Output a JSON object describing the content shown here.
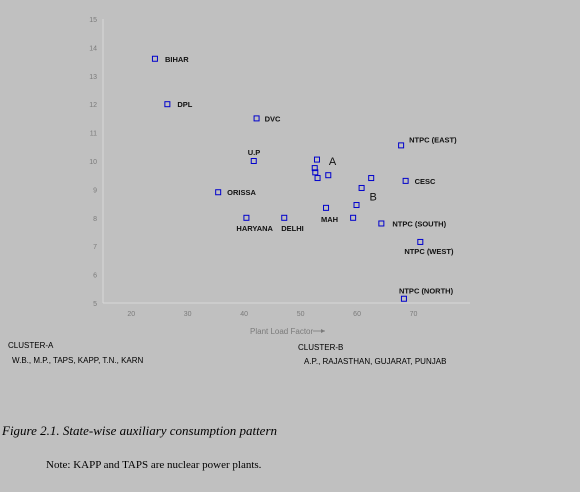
{
  "chart_data": {
    "type": "scatter",
    "xlabel": "Plant Load Factor",
    "ylabel": "",
    "xlim": [
      15,
      80
    ],
    "ylim": [
      5,
      15
    ],
    "xticks": [
      20,
      30,
      40,
      50,
      60,
      70
    ],
    "yticks": [
      5,
      6,
      7,
      8,
      9,
      10,
      11,
      12,
      13,
      14,
      15
    ],
    "grid": false,
    "marker": "hollow-square",
    "marker_color": "#0000cc",
    "points": [
      {
        "label": "BIHAR",
        "x": 24.2,
        "y": 13.6
      },
      {
        "label": "DPL",
        "x": 26.4,
        "y": 12.0
      },
      {
        "label": "DVC",
        "x": 42.2,
        "y": 11.5
      },
      {
        "label": "U.P",
        "x": 41.7,
        "y": 10.0
      },
      {
        "label": "ORISSA",
        "x": 35.4,
        "y": 8.9
      },
      {
        "label": "HARYANA",
        "x": 40.4,
        "y": 8.0
      },
      {
        "label": "DELHI",
        "x": 47.1,
        "y": 8.0
      },
      {
        "label": "",
        "x": 52.9,
        "y": 10.05
      },
      {
        "label": "",
        "x": 52.5,
        "y": 9.75
      },
      {
        "label": "",
        "x": 52.6,
        "y": 9.6
      },
      {
        "label": "",
        "x": 53.0,
        "y": 9.4
      },
      {
        "label": "",
        "x": 54.9,
        "y": 9.5
      },
      {
        "label": "MAH",
        "x": 54.5,
        "y": 8.35
      },
      {
        "label": "",
        "x": 59.3,
        "y": 8.0
      },
      {
        "label": "",
        "x": 59.9,
        "y": 8.45
      },
      {
        "label": "",
        "x": 60.8,
        "y": 9.05
      },
      {
        "label": "",
        "x": 62.5,
        "y": 9.4
      },
      {
        "label": "NTPC (SOUTH)",
        "x": 64.3,
        "y": 7.8
      },
      {
        "label": "NTPC (EAST)",
        "x": 67.8,
        "y": 10.55
      },
      {
        "label": "CESC",
        "x": 68.6,
        "y": 9.3
      },
      {
        "label": "NTPC (WEST)",
        "x": 71.2,
        "y": 7.15
      },
      {
        "label": "NTPC (NORTH)",
        "x": 68.3,
        "y": 5.15
      }
    ],
    "annotations": [
      {
        "text": "A",
        "x": 55.0,
        "y": 10.0
      },
      {
        "text": "B",
        "x": 62.2,
        "y": 8.75
      }
    ]
  },
  "clusters": {
    "a_title": "CLUSTER-A",
    "a_members": "W.B., M.P., TAPS, KAPP, T.N., KARN",
    "b_title": "CLUSTER-B",
    "b_members": "A.P., RAJASTHAN, GUJARAT, PUNJAB"
  },
  "caption": "Figure 2.1. State-wise auxiliary consumption pattern",
  "note": "Note: KAPP and TAPS are nuclear power plants."
}
